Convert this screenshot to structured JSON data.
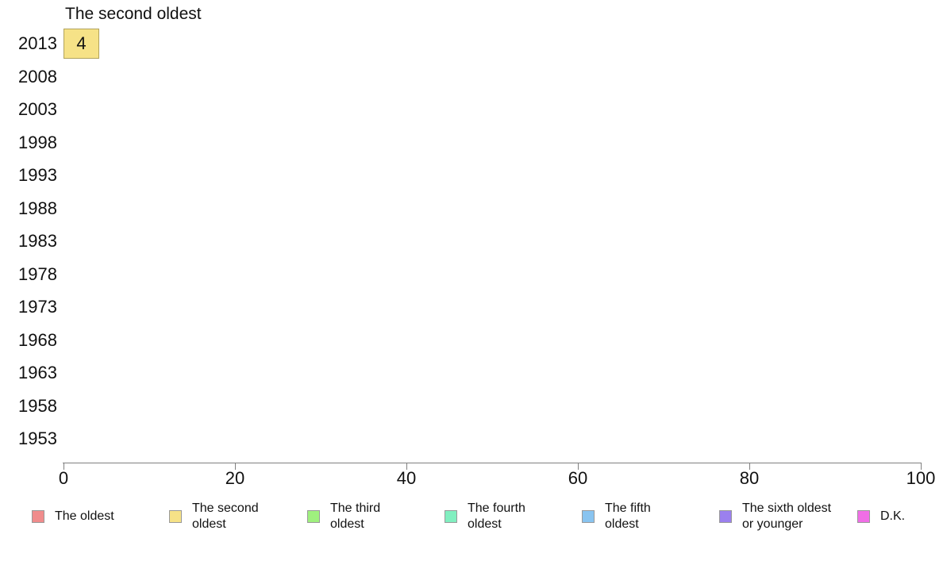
{
  "chart_data": {
    "type": "bar",
    "orientation": "horizontal",
    "title": "The second oldest",
    "categories": [
      "2013",
      "2008",
      "2003",
      "1998",
      "1993",
      "1988",
      "1983",
      "1978",
      "1973",
      "1968",
      "1963",
      "1958",
      "1953"
    ],
    "values": [
      4,
      null,
      null,
      null,
      null,
      null,
      null,
      null,
      null,
      null,
      null,
      null,
      null
    ],
    "xlabel": "",
    "ylabel": "",
    "xlim": [
      0,
      100
    ],
    "x_ticks": [
      "0",
      "20",
      "40",
      "60",
      "80",
      "100"
    ],
    "grid": false,
    "legend_position": "bottom",
    "bar_fill": "#f6e287",
    "bar_border": "#b1a35c",
    "axis_color": "#808080",
    "legend": [
      {
        "label": "The oldest",
        "lines": [
          "The oldest"
        ],
        "color": "#f08c8c"
      },
      {
        "label": "The second oldest",
        "lines": [
          "The second",
          "oldest"
        ],
        "color": "#f6e287"
      },
      {
        "label": "The third oldest",
        "lines": [
          "The third",
          "oldest"
        ],
        "color": "#9ff07e"
      },
      {
        "label": "The fourth oldest",
        "lines": [
          "The fourth",
          "oldest"
        ],
        "color": "#81efc0"
      },
      {
        "label": "The fifth oldest",
        "lines": [
          "The fifth",
          "oldest"
        ],
        "color": "#89c4f0"
      },
      {
        "label": "The sixth oldest or younger",
        "lines": [
          "The sixth oldest",
          "or younger"
        ],
        "color": "#9b80ee"
      },
      {
        "label": "D.K.",
        "lines": [
          "D.K."
        ],
        "color": "#f06ee6"
      }
    ]
  }
}
